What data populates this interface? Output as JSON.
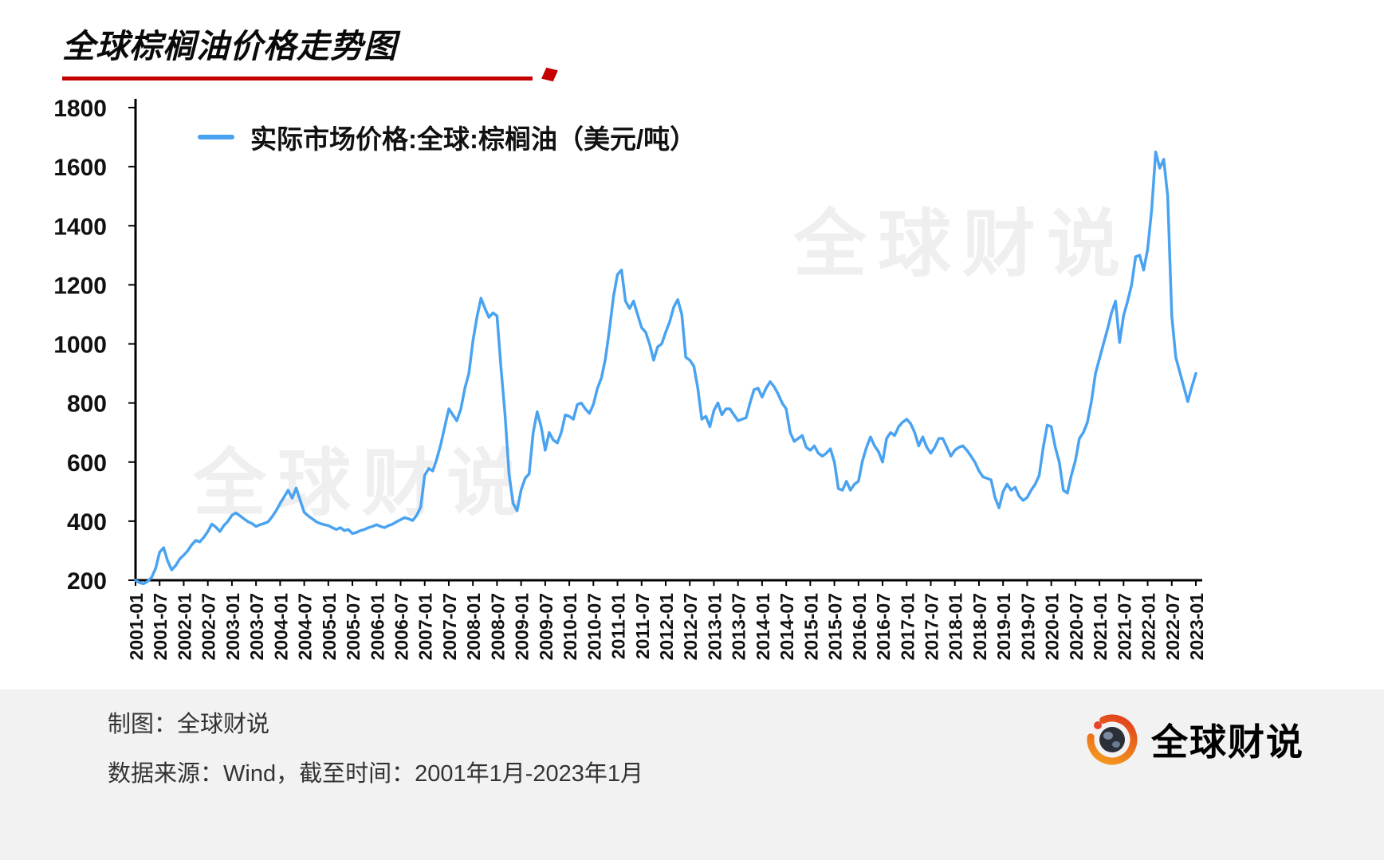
{
  "title": "全球棕榈油价格走势图",
  "watermark": "全球财说",
  "legend": "实际市场价格:全球:棕榈油（美元/吨）",
  "footer": {
    "line1": "制图：全球财说",
    "line2": "数据来源：Wind，截至时间：2001年1月-2023年1月",
    "logo_text": "全球财说"
  },
  "colors": {
    "line": "#4AA3F0",
    "accent_red": "#c40000"
  },
  "chart_data": {
    "type": "line",
    "title": "全球棕榈油价格走势图",
    "series_name": "实际市场价格:全球:棕榈油（美元/吨）",
    "xlabel": "",
    "ylabel": "美元/吨",
    "ylim": [
      200,
      1800
    ],
    "yticks": [
      200,
      400,
      600,
      800,
      1000,
      1200,
      1400,
      1600,
      1800
    ],
    "grid": false,
    "legend_position": "top-left-inside",
    "x_start": "2001-01",
    "x_end": "2023-01",
    "x_frequency": "monthly",
    "x_tick_labels": [
      "2001-01",
      "2001-07",
      "2002-01",
      "2002-07",
      "2003-01",
      "2003-07",
      "2004-01",
      "2004-07",
      "2005-01",
      "2005-07",
      "2006-01",
      "2006-07",
      "2007-01",
      "2007-07",
      "2008-01",
      "2008-07",
      "2009-01",
      "2009-07",
      "2010-01",
      "2010-07",
      "2011-01",
      "2011-07",
      "2012-01",
      "2012-07",
      "2013-01",
      "2013-07",
      "2014-01",
      "2014-07",
      "2015-01",
      "2015-07",
      "2016-01",
      "2016-07",
      "2017-01",
      "2017-07",
      "2018-01",
      "2018-07",
      "2019-01",
      "2019-07",
      "2020-01",
      "2020-07",
      "2021-01",
      "2021-07",
      "2022-01",
      "2022-07",
      "2023-01"
    ],
    "values": [
      200,
      192,
      188,
      196,
      210,
      240,
      295,
      310,
      265,
      235,
      250,
      272,
      285,
      300,
      320,
      335,
      330,
      345,
      365,
      390,
      380,
      365,
      385,
      400,
      420,
      428,
      418,
      408,
      398,
      392,
      382,
      388,
      392,
      398,
      415,
      435,
      460,
      482,
      505,
      478,
      512,
      470,
      430,
      418,
      408,
      398,
      392,
      388,
      385,
      378,
      372,
      378,
      368,
      372,
      358,
      362,
      368,
      372,
      378,
      382,
      388,
      382,
      378,
      385,
      390,
      398,
      405,
      412,
      408,
      402,
      420,
      448,
      555,
      578,
      570,
      610,
      660,
      720,
      780,
      760,
      740,
      780,
      850,
      900,
      1010,
      1090,
      1155,
      1120,
      1090,
      1105,
      1095,
      920,
      760,
      560,
      460,
      435,
      505,
      545,
      560,
      700,
      770,
      720,
      640,
      700,
      675,
      665,
      700,
      760,
      755,
      745,
      795,
      800,
      780,
      765,
      795,
      850,
      885,
      950,
      1050,
      1160,
      1235,
      1250,
      1145,
      1120,
      1145,
      1100,
      1055,
      1040,
      1000,
      945,
      990,
      1000,
      1040,
      1075,
      1125,
      1150,
      1100,
      955,
      945,
      925,
      850,
      745,
      755,
      720,
      775,
      800,
      760,
      780,
      780,
      760,
      740,
      745,
      750,
      800,
      845,
      850,
      820,
      850,
      872,
      855,
      830,
      800,
      780,
      700,
      670,
      680,
      690,
      650,
      640,
      655,
      630,
      620,
      630,
      645,
      600,
      510,
      505,
      535,
      505,
      525,
      535,
      605,
      650,
      685,
      655,
      635,
      600,
      680,
      700,
      690,
      720,
      735,
      745,
      730,
      700,
      655,
      685,
      650,
      630,
      650,
      680,
      680,
      650,
      620,
      640,
      650,
      655,
      640,
      620,
      600,
      570,
      550,
      545,
      540,
      480,
      445,
      500,
      525,
      505,
      515,
      485,
      470,
      480,
      505,
      525,
      555,
      650,
      725,
      720,
      650,
      600,
      505,
      495,
      555,
      605,
      680,
      700,
      735,
      805,
      900,
      950,
      1000,
      1050,
      1105,
      1145,
      1005,
      1095,
      1145,
      1200,
      1295,
      1300,
      1250,
      1320,
      1455,
      1650,
      1595,
      1625,
      1500,
      1095,
      955,
      905,
      855,
      805,
      855,
      900
    ]
  }
}
